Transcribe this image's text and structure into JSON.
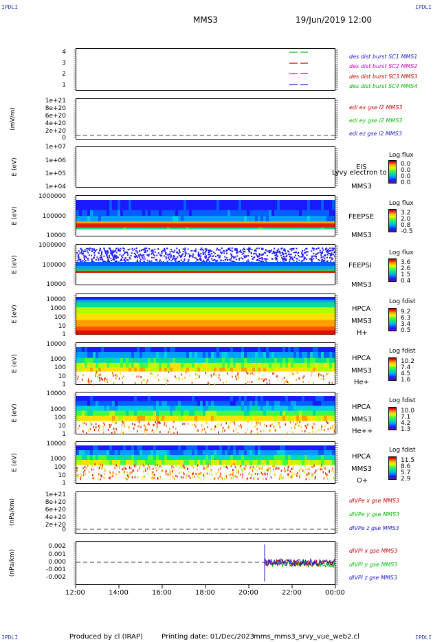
{
  "corners": {
    "tl": "IPDLI",
    "tr": "IPDLI",
    "bl": "IPDLI",
    "br": "IPDLI"
  },
  "header": {
    "spacecraft": "MMS3",
    "date": "19/Jun/2019 12:00"
  },
  "x_ticks": [
    "12:00",
    "14:00",
    "16:00",
    "18:00",
    "20:00",
    "22:00",
    "00:00"
  ],
  "footer": {
    "producer": "Produced by cl (IRAP)",
    "printing": "Printing date: 01/Dec/2023",
    "file": "mms_mms3_srvy_vue_web2.cl"
  },
  "colors": {
    "blue": "#1a1acc",
    "red": "#cc0000",
    "magenta": "#cc00cc",
    "green": "#00bb00",
    "navy": "#1f3fa8"
  },
  "chart_data": [
    {
      "type": "line",
      "panel": "burst",
      "ylabel": "",
      "yticks": [
        "4",
        "3",
        "2",
        "1"
      ],
      "series": [
        {
          "name": "des dist burst SC1 MMS1",
          "color": "#1a1acc"
        },
        {
          "name": "des dist burst SC2 MMS2",
          "color": "#cc00cc"
        },
        {
          "name": "des dist burst SC3 MMS3",
          "color": "#cc0000"
        },
        {
          "name": "des dist burst SC4 MMS4",
          "color": "#00bb00"
        }
      ]
    },
    {
      "type": "line",
      "panel": "edi",
      "ylabel": "(mV/m)",
      "yticks": [
        "1e+21",
        "8e+20",
        "6e+20",
        "4e+20",
        "2e+20",
        "0"
      ],
      "series": [
        {
          "name": "edi ex gse l2 MMS3",
          "color": "#cc0000"
        },
        {
          "name": "edi ey gse l2 MMS3",
          "color": "#00bb00"
        },
        {
          "name": "edi ez gse l2 MMS3",
          "color": "#1a1acc"
        }
      ]
    },
    {
      "type": "heatmap",
      "panel": "eis",
      "ylabel": "E (eV)",
      "yticks": [
        "1e+07",
        "1e+06",
        "1e+05",
        "1e+04"
      ],
      "labels": [
        "EIS",
        "MMS3"
      ],
      "overlay": "Lyvy electron to",
      "colorbar": {
        "title": "Log flux",
        "values": [
          "0.0",
          "0.0",
          "0.0",
          "0.0"
        ]
      }
    },
    {
      "type": "heatmap",
      "panel": "feepse",
      "ylabel": "E (eV)",
      "yticks": [
        "1000000",
        "100000",
        "10000"
      ],
      "labels": [
        "FEEPSE",
        "MMS3"
      ],
      "colorbar": {
        "title": "Log flux",
        "values": [
          "3.2",
          "2.0",
          "0.8",
          "-0.5"
        ]
      }
    },
    {
      "type": "heatmap",
      "panel": "feepsi",
      "ylabel": "E (eV)",
      "yticks": [
        "1000000",
        "100000",
        "10000"
      ],
      "labels": [
        "FEEPSI",
        "MMS3"
      ],
      "colorbar": {
        "title": "Log flux",
        "values": [
          "3.6",
          "2.6",
          "1.5",
          "0.4"
        ]
      }
    },
    {
      "type": "heatmap",
      "panel": "hpca_h",
      "ylabel": "E (eV)",
      "yticks": [
        "10000",
        "1000",
        "100",
        "10",
        "1"
      ],
      "labels": [
        "HPCA",
        "MMS3",
        "H+"
      ],
      "colorbar": {
        "title": "Log fdist",
        "values": [
          "9.2",
          "6.3",
          "3.4",
          "0.5"
        ]
      }
    },
    {
      "type": "heatmap",
      "panel": "hpca_he",
      "ylabel": "E (eV)",
      "yticks": [
        "10000",
        "1000",
        "100",
        "10",
        "1"
      ],
      "labels": [
        "HPCA",
        "MMS3",
        "He+"
      ],
      "colorbar": {
        "title": "Log fdist",
        "values": [
          "10.2",
          "7.4",
          "4.5",
          "1.6"
        ]
      }
    },
    {
      "type": "heatmap",
      "panel": "hpca_he2",
      "ylabel": "E (eV)",
      "yticks": [
        "10000",
        "1000",
        "100",
        "10",
        "1"
      ],
      "labels": [
        "HPCA",
        "MMS3",
        "He++"
      ],
      "colorbar": {
        "title": "Log fdist",
        "values": [
          "10.0",
          "7.1",
          "4.2",
          "1.3"
        ]
      }
    },
    {
      "type": "heatmap",
      "panel": "hpca_o",
      "ylabel": "E (eV)",
      "yticks": [
        "10000",
        "1000",
        "100",
        "10",
        "1"
      ],
      "labels": [
        "HPCA",
        "MMS3",
        "O+"
      ],
      "colorbar": {
        "title": "Log fdist",
        "values": [
          "11.5",
          "8.6",
          "5.7",
          "2.9"
        ]
      }
    },
    {
      "type": "line",
      "panel": "divpe",
      "ylabel": "(nPa/km)",
      "yticks": [
        "1e+21",
        "8e+20",
        "6e+20",
        "4e+20",
        "2e+20",
        "0"
      ],
      "series": [
        {
          "name": "dIVPe x gse MMS3",
          "color": "#cc0000"
        },
        {
          "name": "dIVPe y gse MMS3",
          "color": "#00bb00"
        },
        {
          "name": "dIVPe z gse MMS3",
          "color": "#1a1acc"
        }
      ]
    },
    {
      "type": "line",
      "panel": "divpi",
      "ylabel": "(nPa/km)",
      "yticks": [
        "0.002",
        "0.001",
        "0.000",
        "-0.001",
        "-0.002"
      ],
      "ylim": [
        -0.0025,
        0.0025
      ],
      "data_start": "20:45",
      "data_end": "00:00",
      "series": [
        {
          "name": "dIVPi x gse MMS3",
          "color": "#cc0000"
        },
        {
          "name": "dIVPi y gse MMS3",
          "color": "#00bb00"
        },
        {
          "name": "dIVPi z gse MMS3",
          "color": "#1a1acc"
        }
      ]
    }
  ]
}
